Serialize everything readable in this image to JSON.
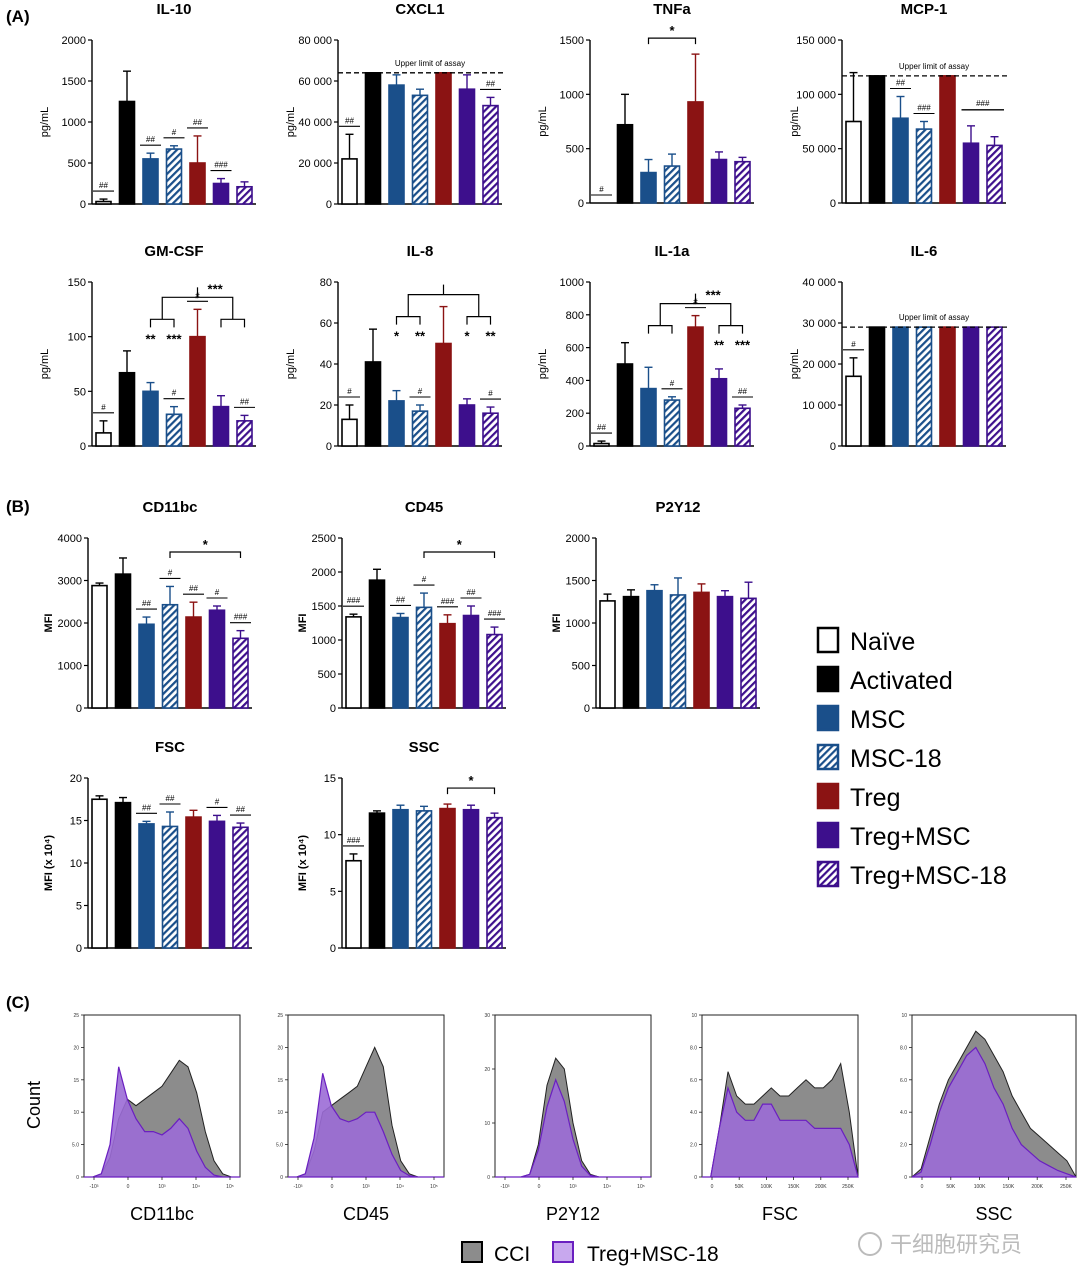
{
  "panel_labels": {
    "a": "(A)",
    "b": "(B)",
    "c": "(C)"
  },
  "groups": [
    {
      "name": "Naïve",
      "fill": "#ffffff",
      "color": "#000000",
      "hatch": false
    },
    {
      "name": "Activated",
      "fill": "#000000",
      "color": "#000000",
      "hatch": false
    },
    {
      "name": "MSC",
      "fill": "#1a4f8a",
      "color": "#1a4f8a",
      "hatch": false
    },
    {
      "name": "MSC-18",
      "fill": "#1a4f8a",
      "color": "#1a4f8a",
      "hatch": true
    },
    {
      "name": "Treg",
      "fill": "#8b1313",
      "color": "#8b1313",
      "hatch": false
    },
    {
      "name": "Treg+MSC",
      "fill": "#3d0f8c",
      "color": "#3d0f8c",
      "hatch": false
    },
    {
      "name": "Treg+MSC-18",
      "fill": "#3d0f8c",
      "color": "#3d0f8c",
      "hatch": true
    }
  ],
  "chart_data": [
    {
      "type": "bar",
      "panel": "A",
      "title": "IL-10",
      "ylabel": "pg/mL",
      "ylim": [
        0,
        2000
      ],
      "yticks": [
        {
          "v": 0,
          "t": "0"
        },
        {
          "v": 500,
          "t": "500"
        },
        {
          "v": 1000,
          "t": "1000"
        },
        {
          "v": 1500,
          "t": "1500"
        },
        {
          "v": 2000,
          "t": "2000"
        }
      ],
      "values": [
        30,
        1250,
        550,
        670,
        500,
        250,
        210
      ],
      "errors": [
        30,
        370,
        70,
        40,
        330,
        60,
        60
      ],
      "annotations": [
        "##",
        "",
        "##",
        "#",
        "##",
        "###",
        ""
      ]
    },
    {
      "type": "bar",
      "panel": "A",
      "title": "CXCL1",
      "ylabel": "pg/mL",
      "ylim": [
        0,
        80000
      ],
      "yticks": [
        {
          "v": 0,
          "t": "0"
        },
        {
          "v": 20000,
          "t": "20 000"
        },
        {
          "v": 40000,
          "t": "40 000"
        },
        {
          "v": 60000,
          "t": "60 000"
        },
        {
          "v": 80000,
          "t": "80 000"
        }
      ],
      "values": [
        22000,
        64000,
        58000,
        53000,
        64000,
        56000,
        48000
      ],
      "errors": [
        12000,
        0,
        5000,
        3000,
        0,
        7000,
        4000
      ],
      "annotations": [
        "##",
        "",
        "",
        "",
        "",
        "",
        "##"
      ],
      "limit": {
        "value": 64000,
        "label": "Upper limit of assay"
      }
    },
    {
      "type": "bar",
      "panel": "A",
      "title": "TNFa",
      "ylabel": "pg/mL",
      "ylim": [
        0,
        1500
      ],
      "yticks": [
        {
          "v": 0,
          "t": "0"
        },
        {
          "v": 500,
          "t": "500"
        },
        {
          "v": 1000,
          "t": "1000"
        },
        {
          "v": 1500,
          "t": "1500"
        }
      ],
      "values": [
        0,
        720,
        280,
        340,
        930,
        400,
        380
      ],
      "errors": [
        0,
        280,
        120,
        110,
        440,
        70,
        40
      ],
      "annotations": [
        "#",
        "",
        "",
        "",
        "",
        "",
        ""
      ],
      "brackets": [
        {
          "from": 2,
          "to": 4,
          "label": "*"
        }
      ]
    },
    {
      "type": "bar",
      "panel": "A",
      "title": "MCP-1",
      "ylabel": "pg/mL",
      "ylim": [
        0,
        150000
      ],
      "yticks": [
        {
          "v": 0,
          "t": "0"
        },
        {
          "v": 50000,
          "t": "50 000"
        },
        {
          "v": 100000,
          "t": "100 000"
        },
        {
          "v": 150000,
          "t": "150 000"
        }
      ],
      "values": [
        75000,
        117000,
        78000,
        68000,
        117000,
        55000,
        53000
      ],
      "errors": [
        45000,
        0,
        20000,
        7000,
        0,
        16000,
        8000
      ],
      "annotations": [
        "",
        "",
        "##",
        "###",
        "",
        "",
        ""
      ],
      "limit": {
        "value": 117000,
        "label": "Upper limit of assay"
      },
      "group_marks": [
        {
          "from": 5,
          "to": 6,
          "label": "###"
        }
      ]
    },
    {
      "type": "bar",
      "panel": "A",
      "title": "GM-CSF",
      "ylabel": "pg/mL",
      "ylim": [
        0,
        150
      ],
      "yticks": [
        {
          "v": 0,
          "t": "0"
        },
        {
          "v": 50,
          "t": "50"
        },
        {
          "v": 100,
          "t": "100"
        },
        {
          "v": 150,
          "t": "150"
        }
      ],
      "values": [
        12,
        67,
        50,
        29,
        100,
        36,
        23
      ],
      "errors": [
        11,
        20,
        8,
        7,
        25,
        10,
        5
      ],
      "annotations": [
        "#",
        "",
        "",
        "#",
        "#",
        "",
        "##"
      ],
      "tree": {
        "left": [
          2,
          3
        ],
        "right": [
          5,
          6
        ],
        "center": 4,
        "top_label": "***",
        "left_labels": [
          "**",
          "***"
        ],
        "right_labels": [
          "",
          ""
        ]
      }
    },
    {
      "type": "bar",
      "panel": "A",
      "title": "IL-8",
      "ylabel": "pg/mL",
      "ylim": [
        0,
        80
      ],
      "yticks": [
        {
          "v": 0,
          "t": "0"
        },
        {
          "v": 20,
          "t": "20"
        },
        {
          "v": 40,
          "t": "40"
        },
        {
          "v": 60,
          "t": "60"
        },
        {
          "v": 80,
          "t": "80"
        }
      ],
      "values": [
        13,
        41,
        22,
        17,
        50,
        20,
        16
      ],
      "errors": [
        7,
        16,
        5,
        3,
        18,
        3,
        3
      ],
      "annotations": [
        "#",
        "",
        "",
        "#",
        "",
        "",
        "#"
      ],
      "tree": {
        "left": [
          2,
          3
        ],
        "right": [
          5,
          6
        ],
        "center": 4,
        "top_label": "",
        "left_labels": [
          "*",
          "**"
        ],
        "right_labels": [
          "*",
          "**"
        ]
      }
    },
    {
      "type": "bar",
      "panel": "A",
      "title": "IL-1a",
      "ylabel": "pg/mL",
      "ylim": [
        0,
        1000
      ],
      "yticks": [
        {
          "v": 0,
          "t": "0"
        },
        {
          "v": 200,
          "t": "200"
        },
        {
          "v": 400,
          "t": "400"
        },
        {
          "v": 600,
          "t": "600"
        },
        {
          "v": 800,
          "t": "800"
        },
        {
          "v": 1000,
          "t": "1000"
        }
      ],
      "values": [
        15,
        500,
        350,
        280,
        725,
        410,
        230
      ],
      "errors": [
        15,
        130,
        130,
        20,
        70,
        60,
        20
      ],
      "annotations": [
        "##",
        "",
        "",
        "#",
        "#",
        "",
        "##"
      ],
      "tree": {
        "left": [
          2,
          3
        ],
        "right": [
          5,
          6
        ],
        "center": 4,
        "top_label": "***",
        "left_labels": [
          "",
          ""
        ],
        "right_labels": [
          "**",
          "***"
        ]
      }
    },
    {
      "type": "bar",
      "panel": "A",
      "title": "IL-6",
      "ylabel": "pg/mL",
      "ylim": [
        0,
        40000
      ],
      "yticks": [
        {
          "v": 0,
          "t": "0"
        },
        {
          "v": 10000,
          "t": "10 000"
        },
        {
          "v": 20000,
          "t": "20 000"
        },
        {
          "v": 30000,
          "t": "30 000"
        },
        {
          "v": 40000,
          "t": "40 000"
        }
      ],
      "values": [
        17000,
        29000,
        29000,
        29000,
        29000,
        29000,
        29000
      ],
      "errors": [
        4500,
        0,
        0,
        0,
        0,
        0,
        0
      ],
      "annotations": [
        "#",
        "",
        "",
        "",
        "",
        "",
        ""
      ],
      "limit": {
        "value": 29000,
        "label": "Upper limit of assay"
      }
    },
    {
      "type": "bar",
      "panel": "B",
      "title": "CD11bc",
      "ylabel": "MFI",
      "ylim": [
        0,
        4000
      ],
      "yticks": [
        {
          "v": 0,
          "t": "0"
        },
        {
          "v": 1000,
          "t": "1000"
        },
        {
          "v": 2000,
          "t": "2000"
        },
        {
          "v": 3000,
          "t": "3000"
        },
        {
          "v": 4000,
          "t": "4000"
        }
      ],
      "values": [
        2880,
        3150,
        1970,
        2430,
        2140,
        2300,
        1640
      ],
      "errors": [
        60,
        380,
        170,
        430,
        350,
        100,
        180
      ],
      "annotations": [
        "",
        "",
        "##",
        "#",
        "##",
        "#",
        "###"
      ],
      "brackets": [
        {
          "from": 3,
          "to": 6,
          "label": "*"
        }
      ]
    },
    {
      "type": "bar",
      "panel": "B",
      "title": "CD45",
      "ylabel": "MFI",
      "ylim": [
        0,
        2500
      ],
      "yticks": [
        {
          "v": 0,
          "t": "0"
        },
        {
          "v": 500,
          "t": "500"
        },
        {
          "v": 1000,
          "t": "1000"
        },
        {
          "v": 1500,
          "t": "1500"
        },
        {
          "v": 2000,
          "t": "2000"
        },
        {
          "v": 2500,
          "t": "2500"
        }
      ],
      "values": [
        1340,
        1880,
        1330,
        1480,
        1240,
        1360,
        1080
      ],
      "errors": [
        40,
        160,
        60,
        210,
        130,
        140,
        110
      ],
      "annotations": [
        "###",
        "",
        "##",
        "#",
        "###",
        "##",
        "###"
      ],
      "brackets": [
        {
          "from": 3,
          "to": 6,
          "label": "*"
        }
      ]
    },
    {
      "type": "bar",
      "panel": "B",
      "title": "P2Y12",
      "ylabel": "MFI",
      "ylim": [
        0,
        2000
      ],
      "yticks": [
        {
          "v": 0,
          "t": "0"
        },
        {
          "v": 500,
          "t": "500"
        },
        {
          "v": 1000,
          "t": "1000"
        },
        {
          "v": 1500,
          "t": "1500"
        },
        {
          "v": 2000,
          "t": "2000"
        }
      ],
      "values": [
        1260,
        1310,
        1380,
        1330,
        1360,
        1310,
        1290
      ],
      "errors": [
        80,
        80,
        70,
        200,
        100,
        70,
        190
      ],
      "annotations": [
        "",
        "",
        "",
        "",
        "",
        "",
        ""
      ]
    },
    {
      "type": "bar",
      "panel": "B",
      "title": "FSC",
      "ylabel": "MFI (x 10⁴)",
      "ylim": [
        0,
        20
      ],
      "yticks": [
        {
          "v": 0,
          "t": "0"
        },
        {
          "v": 5,
          "t": "5"
        },
        {
          "v": 10,
          "t": "10"
        },
        {
          "v": 15,
          "t": "15"
        },
        {
          "v": 20,
          "t": "20"
        }
      ],
      "values": [
        17.5,
        17.1,
        14.6,
        14.3,
        15.4,
        14.9,
        14.2
      ],
      "errors": [
        0.4,
        0.6,
        0.3,
        1.7,
        0.8,
        0.7,
        0.5
      ],
      "annotations": [
        "",
        "",
        "##",
        "##",
        "",
        "#",
        "##"
      ]
    },
    {
      "type": "bar",
      "panel": "B",
      "title": "SSC",
      "ylabel": "MFI (x 10⁴)",
      "ylim": [
        0,
        15
      ],
      "yticks": [
        {
          "v": 0,
          "t": "0"
        },
        {
          "v": 5,
          "t": "5"
        },
        {
          "v": 10,
          "t": "10"
        },
        {
          "v": 15,
          "t": "15"
        }
      ],
      "values": [
        7.7,
        11.9,
        12.2,
        12.1,
        12.3,
        12.2,
        11.5
      ],
      "errors": [
        0.6,
        0.2,
        0.4,
        0.4,
        0.4,
        0.4,
        0.4
      ],
      "annotations": [
        "###",
        "",
        "",
        "",
        "",
        "",
        ""
      ],
      "brackets": [
        {
          "from": 4,
          "to": 6,
          "label": "*"
        }
      ]
    },
    {
      "type": "area",
      "panel": "C",
      "xlabel": "CD11bc",
      "ylim": [
        0,
        25
      ],
      "yticks": [
        "0",
        "5.0",
        "10",
        "15",
        "20",
        "25"
      ],
      "xticks": [
        "-10³",
        "0",
        "10³",
        "10⁴",
        "10⁵"
      ],
      "cci": [
        0,
        0,
        0.5,
        3,
        9,
        12,
        11,
        12,
        13,
        14,
        16,
        18,
        17,
        13,
        7,
        2.5,
        0.5,
        0,
        0
      ],
      "treg": [
        0,
        0,
        0.5,
        5,
        17,
        12,
        9,
        7,
        7,
        6.5,
        7.5,
        9,
        7.5,
        4,
        1.5,
        0.3,
        0,
        0,
        0
      ]
    },
    {
      "type": "area",
      "panel": "C",
      "xlabel": "CD45",
      "ylim": [
        0,
        25
      ],
      "yticks": [
        "0",
        "5.0",
        "10",
        "15",
        "20",
        "25"
      ],
      "xticks": [
        "-10³",
        "0",
        "10³",
        "10⁴",
        "10⁵"
      ],
      "cci": [
        0,
        0,
        0.5,
        4,
        10,
        11,
        12,
        13,
        14,
        17,
        20,
        17,
        8,
        2.5,
        0.5,
        0,
        0,
        0,
        0
      ],
      "treg": [
        0,
        0,
        0.5,
        6,
        16,
        11,
        9,
        8.5,
        9,
        10,
        10,
        7,
        3.5,
        1,
        0.2,
        0,
        0,
        0,
        0
      ]
    },
    {
      "type": "area",
      "panel": "C",
      "xlabel": "P2Y12",
      "ylim": [
        0,
        30
      ],
      "yticks": [
        "0",
        "10",
        "20",
        "30"
      ],
      "xticks": [
        "-10³",
        "0",
        "10³",
        "10⁴",
        "10⁵"
      ],
      "cci": [
        0,
        0,
        0,
        0,
        0.5,
        6,
        17,
        22,
        20,
        10,
        3,
        0.5,
        0,
        0,
        0,
        0,
        0,
        0,
        0
      ],
      "treg": [
        0,
        0,
        0,
        0,
        0.5,
        5,
        13,
        18,
        14,
        7,
        2,
        0.3,
        0,
        0,
        0,
        0,
        0,
        0,
        0
      ]
    },
    {
      "type": "area",
      "panel": "C",
      "xlabel": "FSC",
      "ylim": [
        0,
        10
      ],
      "yticks": [
        "0",
        "2.0",
        "4.0",
        "6.0",
        "8.0",
        "10"
      ],
      "xticks": [
        "0",
        "50K",
        "100K",
        "150K",
        "200K",
        "250K"
      ],
      "cci": [
        0,
        0,
        3,
        6.5,
        5,
        4.5,
        4.5,
        5,
        5.5,
        5,
        5,
        5.5,
        6,
        5.5,
        5.5,
        6,
        7,
        4,
        0
      ],
      "treg": [
        0,
        0,
        3,
        5.5,
        4,
        3.5,
        3.5,
        4.5,
        4.5,
        3.5,
        3.5,
        3.5,
        3.5,
        3,
        3,
        3,
        3,
        2,
        0
      ]
    },
    {
      "type": "area",
      "panel": "C",
      "xlabel": "SSC",
      "ylim": [
        0,
        10
      ],
      "yticks": [
        "0",
        "2.0",
        "4.0",
        "6.0",
        "8.0",
        "10"
      ],
      "xticks": [
        "0",
        "50K",
        "100K",
        "150K",
        "200K",
        "250K"
      ],
      "cci": [
        0,
        0.5,
        2.5,
        4.5,
        6,
        7,
        8,
        9,
        8.5,
        7.5,
        6.5,
        5,
        4,
        3,
        2.5,
        2,
        1.5,
        1,
        0
      ],
      "treg": [
        0,
        0.3,
        2,
        4,
        5.5,
        6.5,
        7.5,
        8,
        7,
        5.5,
        4.5,
        3,
        2,
        1.5,
        1,
        0.7,
        0.4,
        0.2,
        0
      ]
    }
  ],
  "histogram": {
    "ylabel": "Count",
    "legend": [
      {
        "name": "CCI",
        "fill": "#8c8c8c"
      },
      {
        "name": "Treg+MSC-18",
        "fill": "#a77ad9"
      }
    ],
    "cci_color": "#8c8c8c",
    "treg_color": "#9b6cd6",
    "treg_line": "#6a1fc0"
  },
  "watermark": "干细胞研究员"
}
